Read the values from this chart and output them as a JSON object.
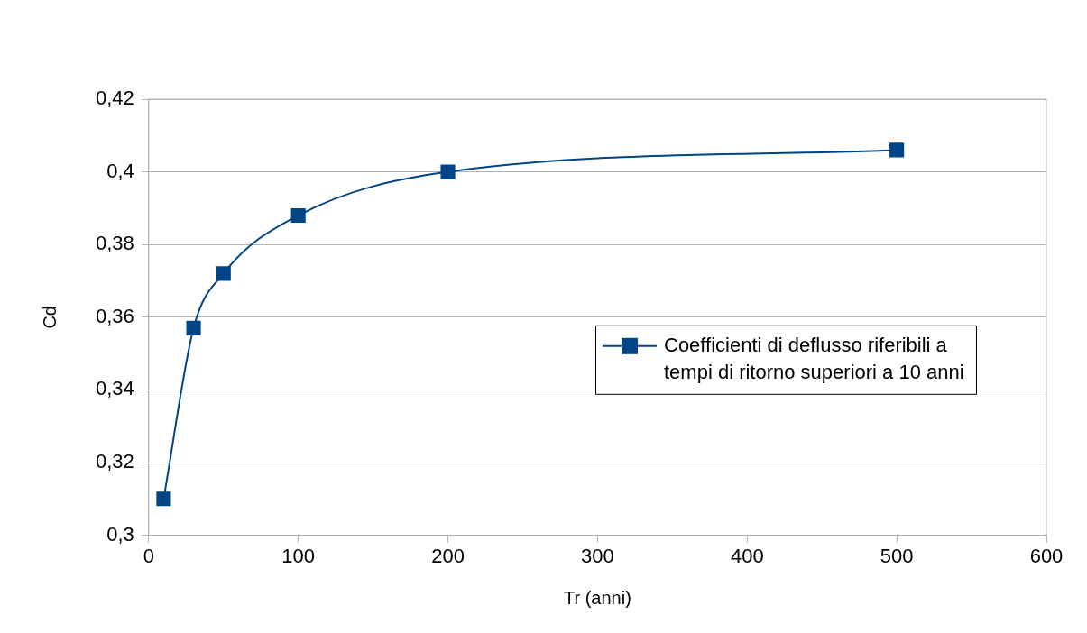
{
  "chart_data": {
    "type": "line",
    "xlabel": "Tr (anni)",
    "ylabel": "Cd",
    "series": [
      {
        "name": "Coefficienti di deflusso riferibili a tempi di ritorno superiori a 10 anni",
        "color": "#004586",
        "x": [
          10,
          30,
          50,
          100,
          200,
          500
        ],
        "values": [
          0.31,
          0.357,
          0.372,
          0.388,
          0.4,
          0.406
        ]
      }
    ],
    "xlim": [
      0,
      600
    ],
    "xticks": [
      0,
      100,
      200,
      300,
      400,
      500,
      600
    ],
    "ylim": [
      0.3,
      0.42
    ],
    "yticks": [
      {
        "value": 0.3,
        "label": "0,3"
      },
      {
        "value": 0.32,
        "label": "0,32"
      },
      {
        "value": 0.34,
        "label": "0,34"
      },
      {
        "value": 0.36,
        "label": "0,36"
      },
      {
        "value": 0.38,
        "label": "0,38"
      },
      {
        "value": 0.4,
        "label": "0,4"
      },
      {
        "value": 0.42,
        "label": "0,42"
      }
    ],
    "grid": "y",
    "legend": "right",
    "marker": "square",
    "line_style": "solid"
  }
}
